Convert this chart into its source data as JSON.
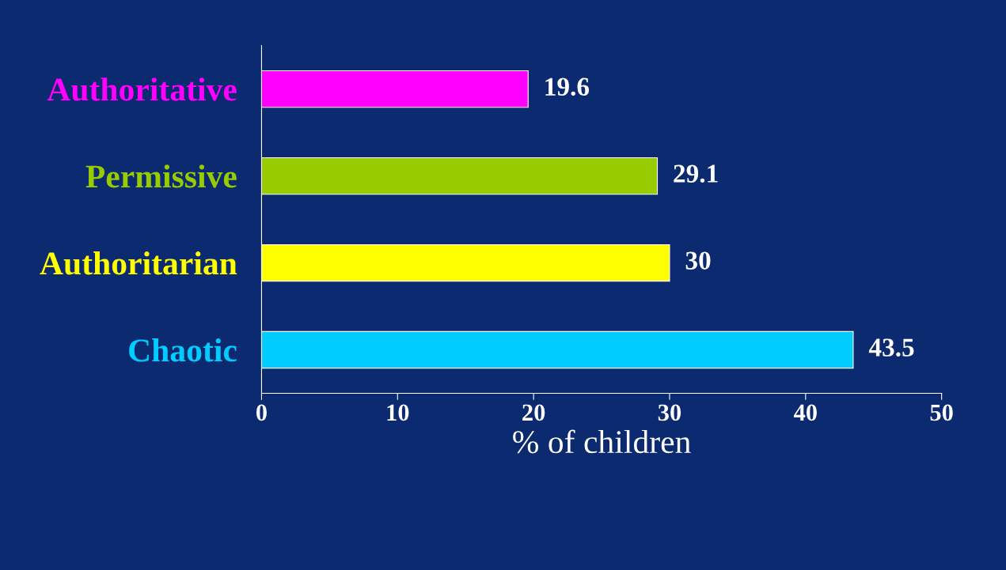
{
  "chart_data": {
    "type": "bar",
    "orientation": "horizontal",
    "categories": [
      "Authoritative",
      "Permissive",
      "Authoritarian",
      "Chaotic"
    ],
    "values": [
      19.6,
      29.1,
      30,
      43.5
    ],
    "colors": [
      "#ff00ff",
      "#99cc00",
      "#ffff00",
      "#00ccff"
    ],
    "xlabel": "% of children",
    "xlim": [
      0,
      50
    ],
    "xticks": [
      0,
      10,
      20,
      30,
      40,
      50
    ],
    "data_labels": true,
    "grid": false
  }
}
